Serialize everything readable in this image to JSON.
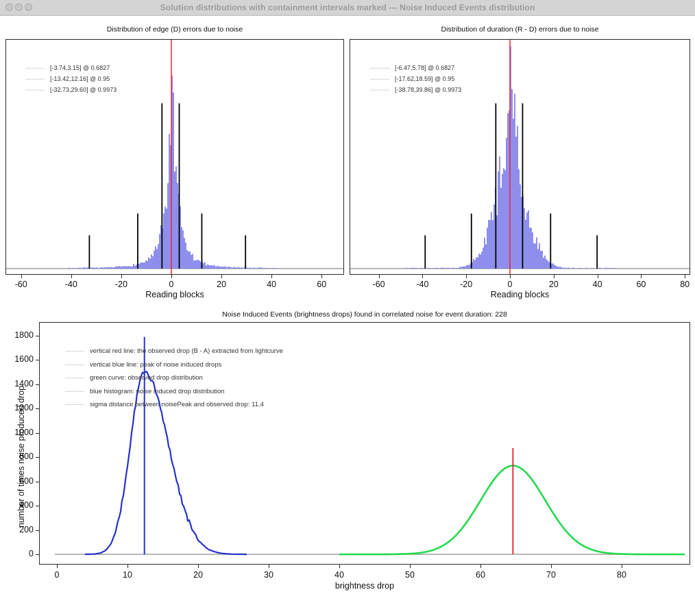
{
  "window": {
    "title": "Solution distributions with containment intervals marked --- Noise Induced Events distribution",
    "buttons": [
      "close",
      "minimize",
      "zoom"
    ]
  },
  "colors": {
    "histogram_fill": "#8486ec",
    "red_line": "#f01828",
    "blue_line": "#2633c8",
    "green_curve": "#24d94e",
    "interval_marker": "#000000",
    "baseline_gray": "#a0a0a0",
    "legend_key": "#d8d8d8"
  },
  "chart_data": [
    {
      "id": "edge-errors",
      "type": "histogram",
      "title": "Distribution of edge (D) errors due to noise",
      "xlabel": "Reading blocks",
      "xticks": [
        -60,
        -40,
        -20,
        0,
        20,
        40,
        60
      ],
      "x_range": [
        -66,
        70
      ],
      "red_vline_x": 0,
      "distribution": {
        "center": 0,
        "peak_fraction": 0.76,
        "components": [
          {
            "amp": 0.66,
            "scale": 2.2,
            "pow": 1
          },
          {
            "amp": 0.1,
            "scale": 7.5,
            "pow": 1
          }
        ],
        "noise_tail_extent": 42
      },
      "containment_intervals": [
        {
          "low": -3.74,
          "high": 3.15,
          "coverage": 0.6827,
          "marker_height_fraction": 0.72
        },
        {
          "low": -13.42,
          "high": 12.16,
          "coverage": 0.95,
          "marker_height_fraction": 0.24
        },
        {
          "low": -32.73,
          "high": 29.6,
          "coverage": 0.9973,
          "marker_height_fraction": 0.145
        }
      ],
      "legend": [
        "[-3.74,3.15] @ 0.6827",
        "[-13.42,12.16] @ 0.95",
        "[-32.73,29.60] @ 0.9973"
      ]
    },
    {
      "id": "duration-errors",
      "type": "histogram",
      "title": "Distribution of duration (R - D) errors due to noise",
      "xlabel": "Reading blocks",
      "xticks": [
        -60,
        -40,
        -20,
        0,
        20,
        40,
        60,
        80
      ],
      "x_range": [
        -73,
        83
      ],
      "red_vline_x": 0,
      "distribution": {
        "center": 0,
        "peak_fraction": 0.91,
        "components": [
          {
            "amp": 0.6,
            "scale": 3.4,
            "pow": 1
          },
          {
            "amp": 0.31,
            "scale": 11,
            "pow": 2
          }
        ],
        "noise_tail_extent": 48
      },
      "containment_intervals": [
        {
          "low": -6.47,
          "high": 5.78,
          "coverage": 0.6827,
          "marker_height_fraction": 0.72
        },
        {
          "low": -17.62,
          "high": 18.59,
          "coverage": 0.95,
          "marker_height_fraction": 0.24
        },
        {
          "low": -38.78,
          "high": 39.86,
          "coverage": 0.9973,
          "marker_height_fraction": 0.145
        }
      ],
      "legend": [
        "[-6.47,5.78] @ 0.6827",
        "[-17.62,18.59] @ 0.95",
        "[-38.78,39.86] @ 0.9973"
      ]
    },
    {
      "id": "noise-induced-events",
      "type": "line",
      "title": "Noise Induced Events (brightness drops) found in correlated noise for event duration: 228",
      "xlabel": "brightness drop",
      "ylabel": "number of times noise produced drop",
      "event_duration": 228,
      "sigma_distance": 11.4,
      "xticks": [
        0,
        10,
        20,
        30,
        40,
        50,
        60,
        70,
        80
      ],
      "yticks": [
        0,
        200,
        400,
        600,
        800,
        1000,
        1200,
        1400,
        1600,
        1800
      ],
      "x_range": [
        -2.5,
        89.7
      ],
      "y_range": [
        0,
        1913
      ],
      "series": [
        {
          "name": "noise_induced_drop_distribution",
          "shape": "skew_gaussian",
          "center": 12.4,
          "peak": 1500,
          "sigma_left": 2.0,
          "sigma_right": 3.4,
          "color_key": "blue_line"
        },
        {
          "name": "observed_drop_distribution",
          "shape": "gaussian",
          "center": 64.6,
          "peak": 730,
          "sigma": 4.6,
          "color_key": "green_curve"
        }
      ],
      "vlines": [
        {
          "name": "noise_peak",
          "x": 12.4,
          "y_top": 1790,
          "color_key": "blue_line"
        },
        {
          "name": "observed_drop",
          "x": 64.6,
          "y_top": 875,
          "color_key": "red_line"
        }
      ],
      "legend": [
        "vertical red line: the observed drop (B - A) extracted from lightcurve",
        "vertical blue line: peak of noise induced drops",
        "green curve: observed drop distribution",
        "blue histogram: noise induced drop distribution",
        "sigma distance between noisePeak and observed drop: 11.4"
      ]
    }
  ]
}
